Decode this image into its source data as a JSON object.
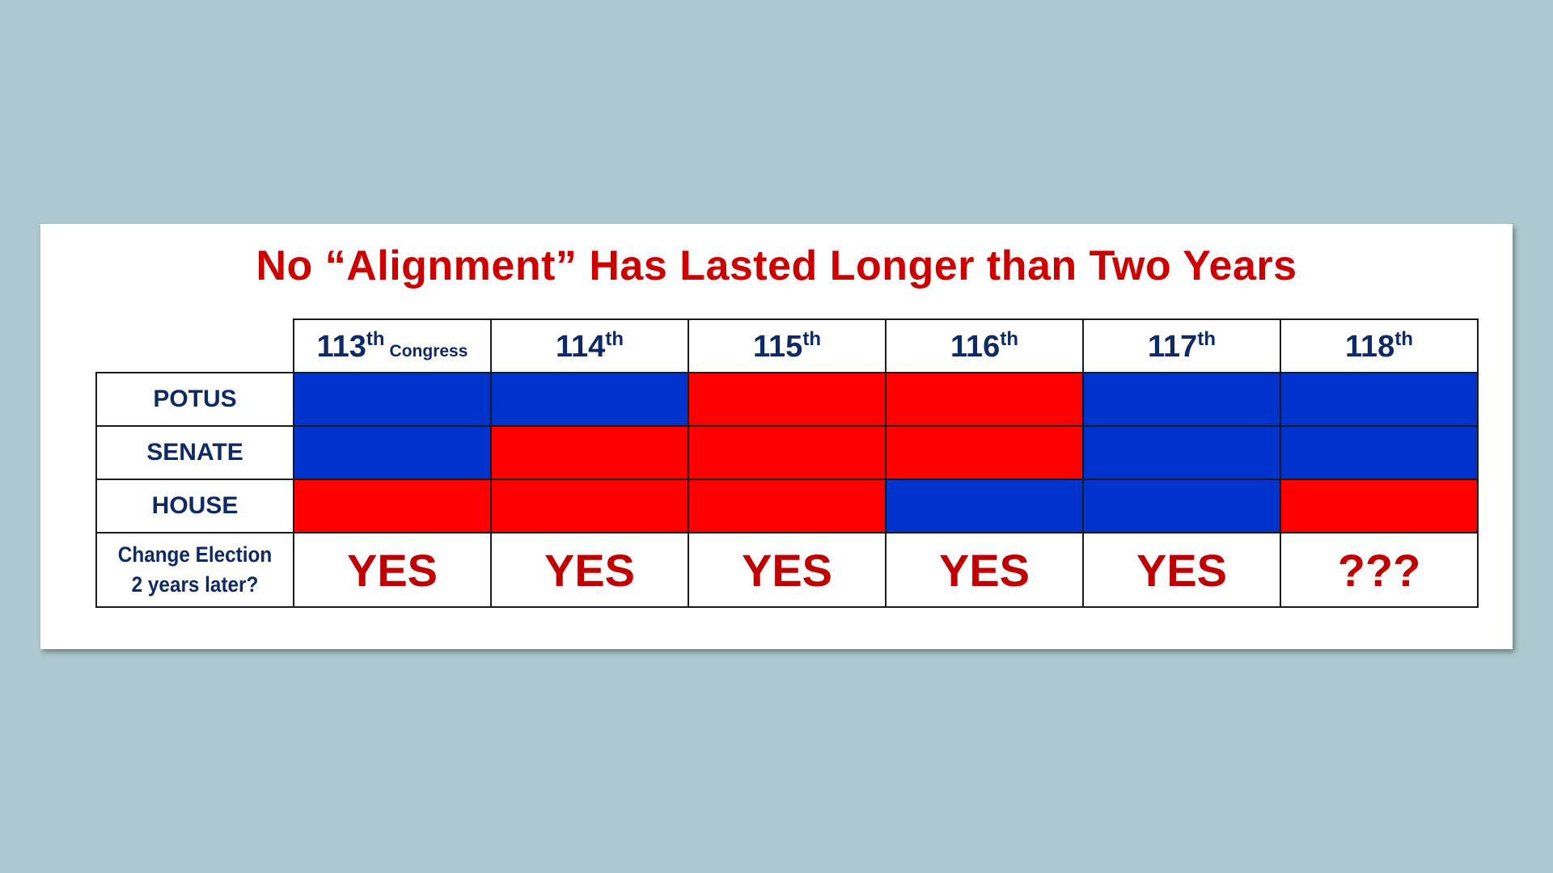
{
  "title": "No “Alignment” Has Lasted Longer than Two Years",
  "colors": {
    "democrat": "#0033cc",
    "republican": "#ff0000",
    "label_text": "#0d2a66",
    "answer_text": "#c00000"
  },
  "columns": [
    {
      "number": "113",
      "suffix": "th",
      "extra": "Congress"
    },
    {
      "number": "114",
      "suffix": "th",
      "extra": ""
    },
    {
      "number": "115",
      "suffix": "th",
      "extra": ""
    },
    {
      "number": "116",
      "suffix": "th",
      "extra": ""
    },
    {
      "number": "117",
      "suffix": "th",
      "extra": ""
    },
    {
      "number": "118",
      "suffix": "th",
      "extra": ""
    }
  ],
  "rows": [
    {
      "label": "POTUS",
      "control": [
        "D",
        "D",
        "R",
        "R",
        "D",
        "D"
      ]
    },
    {
      "label": "SENATE",
      "control": [
        "D",
        "R",
        "R",
        "R",
        "D",
        "D"
      ]
    },
    {
      "label": "HOUSE",
      "control": [
        "R",
        "R",
        "R",
        "D",
        "D",
        "R"
      ]
    }
  ],
  "change_row": {
    "label_line1": "Change Election",
    "label_line2": "2 years later?",
    "answers": [
      "YES",
      "YES",
      "YES",
      "YES",
      "YES",
      "???"
    ]
  }
}
